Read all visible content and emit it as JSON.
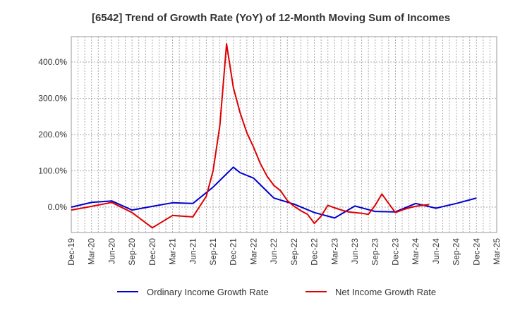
{
  "chart_data": {
    "type": "line",
    "title": "[6542]  Trend of Growth Rate (YoY) of 12-Month Moving Sum of Incomes",
    "x": [
      "Dec-19",
      "Jan-20",
      "Feb-20",
      "Mar-20",
      "Apr-20",
      "May-20",
      "Jun-20",
      "Jul-20",
      "Aug-20",
      "Sep-20",
      "Oct-20",
      "Nov-20",
      "Dec-20",
      "Jan-21",
      "Feb-21",
      "Mar-21",
      "Apr-21",
      "May-21",
      "Jun-21",
      "Jul-21",
      "Aug-21",
      "Sep-21",
      "Oct-21",
      "Nov-21",
      "Dec-21",
      "Jan-22",
      "Feb-22",
      "Mar-22",
      "Apr-22",
      "May-22",
      "Jun-22",
      "Jul-22",
      "Aug-22",
      "Sep-22",
      "Oct-22",
      "Nov-22",
      "Dec-22",
      "Jan-23",
      "Feb-23",
      "Mar-23",
      "Apr-23",
      "May-23",
      "Jun-23",
      "Jul-23",
      "Aug-23",
      "Sep-23",
      "Oct-23",
      "Nov-23",
      "Dec-23",
      "Jan-24",
      "Feb-24",
      "Mar-24",
      "Apr-24",
      "May-24",
      "Jun-24",
      "Jul-24",
      "Aug-24",
      "Sep-24",
      "Oct-24",
      "Nov-24",
      "Dec-24",
      "Jan-25",
      "Feb-25",
      "Mar-25"
    ],
    "x_tick_labels": [
      "Dec-19",
      "Mar-20",
      "Jun-20",
      "Sep-20",
      "Dec-20",
      "Mar-21",
      "Jun-21",
      "Sep-21",
      "Dec-21",
      "Mar-22",
      "Jun-22",
      "Sep-22",
      "Dec-22",
      "Mar-23",
      "Jun-23",
      "Sep-23",
      "Dec-23",
      "Mar-24",
      "Jun-24",
      "Sep-24",
      "Dec-24",
      "Mar-25"
    ],
    "y_tick_labels": [
      "0.0%",
      "100.0%",
      "200.0%",
      "300.0%",
      "400.0%"
    ],
    "y_ticks": [
      0,
      100,
      200,
      300,
      400
    ],
    "ylim": [
      -70,
      470
    ],
    "grid": true,
    "legend_position": "bottom",
    "series": [
      {
        "name": "Ordinary Income Growth Rate",
        "color": "#0000cc",
        "values": [
          0,
          null,
          null,
          13,
          null,
          null,
          17,
          null,
          null,
          -8,
          null,
          null,
          2,
          null,
          null,
          12,
          null,
          null,
          10,
          null,
          null,
          55,
          null,
          null,
          110,
          95,
          null,
          80,
          null,
          null,
          25,
          null,
          null,
          8,
          null,
          null,
          -15,
          null,
          null,
          -30,
          null,
          null,
          3,
          null,
          null,
          -12,
          null,
          null,
          -13,
          null,
          null,
          10,
          null,
          null,
          -3,
          null,
          null,
          10,
          null,
          null,
          25,
          null,
          null,
          null
        ]
      },
      {
        "name": "Net Income Growth Rate",
        "color": "#dd0000",
        "values": [
          -8,
          null,
          null,
          2,
          null,
          null,
          13,
          null,
          null,
          -15,
          null,
          null,
          -57,
          null,
          null,
          -23,
          null,
          null,
          -27,
          null,
          30,
          100,
          225,
          450,
          330,
          260,
          205,
          165,
          120,
          85,
          60,
          45,
          18,
          2,
          -10,
          -20,
          -45,
          -25,
          5,
          -2,
          -8,
          -13,
          -15,
          -17,
          -20,
          5,
          36,
          10,
          -15,
          -8,
          -2,
          2,
          5,
          7,
          null,
          null,
          null,
          null,
          null,
          null,
          null,
          null,
          null,
          null
        ]
      }
    ]
  }
}
